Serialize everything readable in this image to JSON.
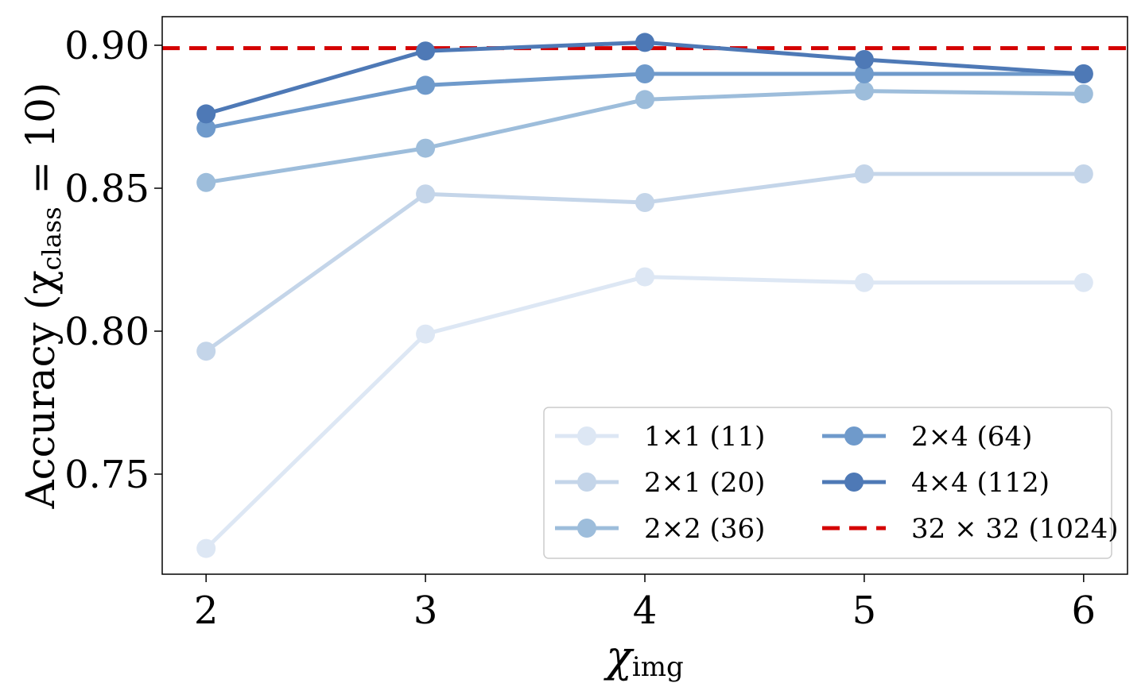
{
  "chart_data": {
    "type": "line",
    "xlabel": "χ",
    "xlabel_sub": "img",
    "ylabel": "Accuracy (χ",
    "ylabel_sub": "class",
    "ylabel_tail": " = 10)",
    "x": [
      2,
      3,
      4,
      5,
      6
    ],
    "xlim": [
      1.8,
      6.2
    ],
    "ylim": [
      0.715,
      0.91
    ],
    "xticks": [
      {
        "value": 2,
        "label": "2"
      },
      {
        "value": 3,
        "label": "3"
      },
      {
        "value": 4,
        "label": "4"
      },
      {
        "value": 5,
        "label": "5"
      },
      {
        "value": 6,
        "label": "6"
      }
    ],
    "yticks": [
      {
        "value": 0.75,
        "label": "0.75"
      },
      {
        "value": 0.8,
        "label": "0.80"
      },
      {
        "value": 0.85,
        "label": "0.85"
      },
      {
        "value": 0.9,
        "label": "0.90"
      }
    ],
    "series": [
      {
        "name": "1×1 (11)",
        "color": "#dde7f4",
        "values": [
          0.724,
          0.799,
          0.819,
          0.817,
          0.817
        ]
      },
      {
        "name": "2×1 (20)",
        "color": "#c4d5e9",
        "values": [
          0.793,
          0.848,
          0.845,
          0.855,
          0.855
        ]
      },
      {
        "name": "2×2 (36)",
        "color": "#9dbddb",
        "values": [
          0.852,
          0.864,
          0.881,
          0.884,
          0.883
        ]
      },
      {
        "name": "2×4 (64)",
        "color": "#6f9acb",
        "values": [
          0.871,
          0.886,
          0.89,
          0.89,
          0.89
        ]
      },
      {
        "name": "4×4 (112)",
        "color": "#4e79b6",
        "values": [
          0.876,
          0.898,
          0.901,
          0.895,
          0.89
        ]
      }
    ],
    "reference": {
      "name": "32 × 32 (1024)",
      "value": 0.899,
      "color": "#d40000",
      "style": "dashed"
    },
    "legend_position": "lower-right",
    "legend_columns": 2,
    "grid": false
  }
}
